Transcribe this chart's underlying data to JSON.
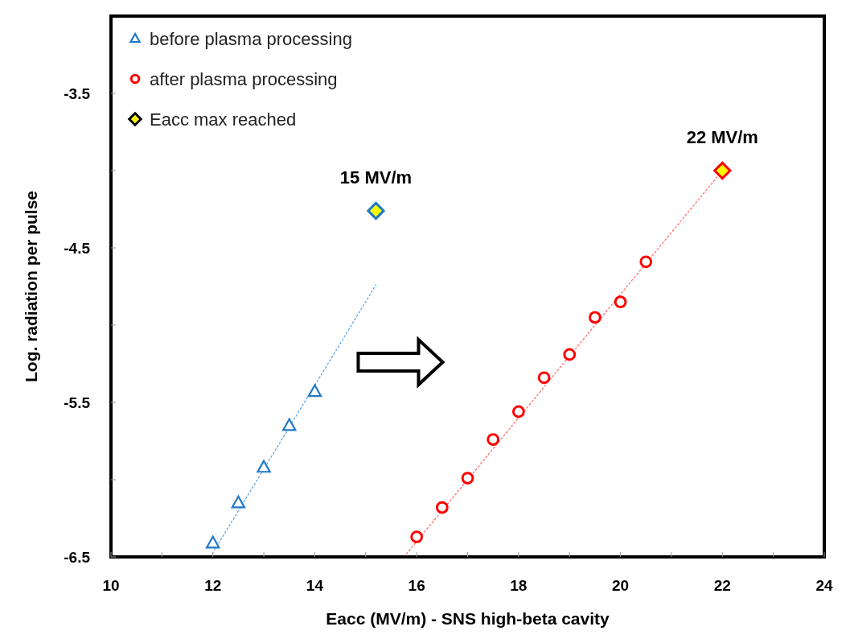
{
  "chart_data": {
    "type": "scatter",
    "xlabel": "Eacc (MV/m) - SNS high-beta cavity",
    "ylabel": "Log. radiation per pulse",
    "xlim": [
      10,
      24
    ],
    "ylim": [
      -6.5,
      -3.0
    ],
    "xticks": [
      10,
      {
        "value": 11,
        "label": null
      },
      12,
      {
        "value": 13,
        "label": null
      },
      14,
      {
        "value": 15,
        "label": null
      },
      16,
      {
        "value": 17,
        "label": null
      },
      18,
      {
        "value": 19,
        "label": null
      },
      20,
      {
        "value": 21,
        "label": null
      },
      22,
      {
        "value": 23,
        "label": null
      },
      24
    ],
    "yticks": [
      -6.5,
      {
        "value": -6,
        "label": null
      },
      -5.5,
      {
        "value": -5,
        "label": null
      },
      -4.5,
      {
        "value": -4,
        "label": null
      },
      -3.5
    ],
    "grid": false,
    "legend": "top left",
    "series": [
      {
        "name": "before plasma processing",
        "color": "#1f78c8",
        "marker": "triangle",
        "x": [
          12,
          12.5,
          13,
          13.5,
          14
        ],
        "values": [
          -6.41,
          -6.15,
          -5.92,
          -5.65,
          -5.43
        ]
      },
      {
        "name": "after plasma processing",
        "color": "#ff0000",
        "marker": "circle",
        "x": [
          16,
          16.5,
          17,
          17.5,
          18,
          18.5,
          19,
          19.5,
          20,
          20.5
        ],
        "values": [
          -6.37,
          -6.18,
          -5.99,
          -5.74,
          -5.56,
          -5.34,
          -5.19,
          -4.95,
          -4.85,
          -4.59
        ]
      },
      {
        "name": "Eacc max reached",
        "color": "#ffff00",
        "marker": "diamond",
        "x": [
          15.2,
          22
        ],
        "values": [
          -4.26,
          -4.0
        ],
        "colors": [
          "#1f78c8",
          "#ff0000"
        ]
      },
      {
        "type": "line",
        "color": "#5fa8e8",
        "line_style": "dotted",
        "x": [
          11.95,
          15.2
        ],
        "values": [
          -6.5,
          -4.74
        ]
      },
      {
        "type": "line",
        "color": "#ff7070",
        "line_style": "dotted",
        "x": [
          15.75,
          22
        ],
        "values": [
          -6.5,
          -4.0
        ]
      }
    ],
    "annotations": [
      {
        "text": "15 MV/m",
        "x": 15.2,
        "y": -4.26
      },
      {
        "text": "22 MV/m",
        "x": 22,
        "y": -4.0
      }
    ]
  }
}
